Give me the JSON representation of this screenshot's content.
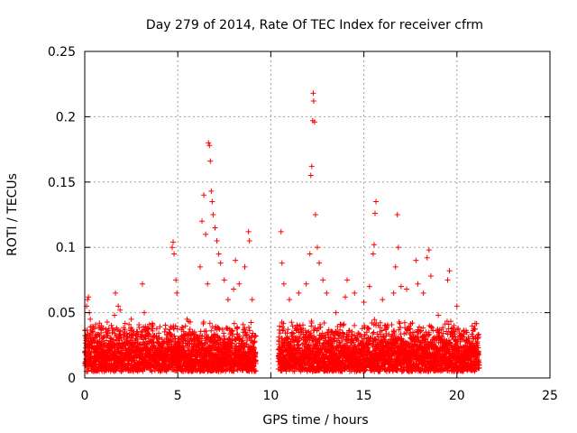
{
  "chart_data": {
    "type": "scatter",
    "title": "Day 279 of 2014, Rate Of TEC Index for receiver cfrm",
    "xlabel": "GPS time / hours",
    "ylabel": "ROTI / TECUs",
    "xlim": [
      0,
      25
    ],
    "ylim": [
      0,
      0.25
    ],
    "xticks": [
      0,
      5,
      10,
      15,
      20,
      25
    ],
    "xtick_labels": [
      "0",
      "5",
      "10",
      "15",
      "20",
      "25"
    ],
    "yticks": [
      0,
      0.05,
      0.1,
      0.15,
      0.2,
      0.25
    ],
    "ytick_labels": [
      "0",
      "0.05",
      "0.1",
      "0.15",
      "0.2",
      "0.25"
    ],
    "grid": true,
    "marker": "+",
    "color": "#ff0000",
    "series": [
      {
        "name": "ROTI",
        "points": [
          [
            0.1,
            0.055
          ],
          [
            0.15,
            0.06
          ],
          [
            0.2,
            0.062
          ],
          [
            0.25,
            0.05
          ],
          [
            0.3,
            0.045
          ],
          [
            0.9,
            0.04
          ],
          [
            1.0,
            0.038
          ],
          [
            1.6,
            0.048
          ],
          [
            1.65,
            0.065
          ],
          [
            1.8,
            0.055
          ],
          [
            1.9,
            0.052
          ],
          [
            2.5,
            0.045
          ],
          [
            3.1,
            0.072
          ],
          [
            3.2,
            0.05
          ],
          [
            4.7,
            0.1
          ],
          [
            4.75,
            0.104
          ],
          [
            4.8,
            0.095
          ],
          [
            4.9,
            0.075
          ],
          [
            4.95,
            0.065
          ],
          [
            5.5,
            0.045
          ],
          [
            6.2,
            0.085
          ],
          [
            6.3,
            0.12
          ],
          [
            6.4,
            0.14
          ],
          [
            6.5,
            0.11
          ],
          [
            6.6,
            0.072
          ],
          [
            6.65,
            0.18
          ],
          [
            6.7,
            0.178
          ],
          [
            6.75,
            0.166
          ],
          [
            6.8,
            0.143
          ],
          [
            6.85,
            0.135
          ],
          [
            6.9,
            0.125
          ],
          [
            7.0,
            0.115
          ],
          [
            7.1,
            0.105
          ],
          [
            7.2,
            0.095
          ],
          [
            7.3,
            0.088
          ],
          [
            7.5,
            0.075
          ],
          [
            7.7,
            0.06
          ],
          [
            8.0,
            0.068
          ],
          [
            8.1,
            0.09
          ],
          [
            8.3,
            0.072
          ],
          [
            8.6,
            0.085
          ],
          [
            8.8,
            0.112
          ],
          [
            8.85,
            0.105
          ],
          [
            9.0,
            0.06
          ],
          [
            10.55,
            0.112
          ],
          [
            10.6,
            0.088
          ],
          [
            10.7,
            0.072
          ],
          [
            11.0,
            0.06
          ],
          [
            11.5,
            0.065
          ],
          [
            11.9,
            0.072
          ],
          [
            12.1,
            0.095
          ],
          [
            12.15,
            0.155
          ],
          [
            12.2,
            0.162
          ],
          [
            12.25,
            0.197
          ],
          [
            12.28,
            0.218
          ],
          [
            12.3,
            0.212
          ],
          [
            12.35,
            0.196
          ],
          [
            12.4,
            0.125
          ],
          [
            12.5,
            0.1
          ],
          [
            12.6,
            0.088
          ],
          [
            12.8,
            0.075
          ],
          [
            13.0,
            0.065
          ],
          [
            13.5,
            0.05
          ],
          [
            14.0,
            0.062
          ],
          [
            14.1,
            0.075
          ],
          [
            14.5,
            0.065
          ],
          [
            15.0,
            0.058
          ],
          [
            15.3,
            0.07
          ],
          [
            15.5,
            0.095
          ],
          [
            15.55,
            0.102
          ],
          [
            15.6,
            0.126
          ],
          [
            15.65,
            0.135
          ],
          [
            16.0,
            0.06
          ],
          [
            16.6,
            0.065
          ],
          [
            16.7,
            0.085
          ],
          [
            16.8,
            0.125
          ],
          [
            16.85,
            0.1
          ],
          [
            17.0,
            0.07
          ],
          [
            17.3,
            0.068
          ],
          [
            17.8,
            0.09
          ],
          [
            17.9,
            0.072
          ],
          [
            18.2,
            0.065
          ],
          [
            18.4,
            0.092
          ],
          [
            18.5,
            0.098
          ],
          [
            18.6,
            0.078
          ],
          [
            19.0,
            0.048
          ],
          [
            19.5,
            0.075
          ],
          [
            19.6,
            0.082
          ],
          [
            20.0,
            0.055
          ],
          [
            20.5,
            0.035
          ],
          [
            21.0,
            0.03
          ]
        ]
      }
    ],
    "dense_bands_hours": [
      [
        0,
        9.2
      ],
      [
        10.4,
        21.2
      ]
    ],
    "typical_band_range": [
      0.005,
      0.045
    ]
  }
}
